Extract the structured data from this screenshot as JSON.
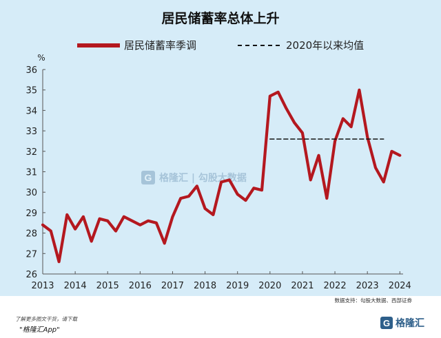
{
  "chart_data": {
    "type": "line",
    "title": "居民储蓄率总体上升",
    "ylabel": "%",
    "ylim": [
      26,
      36
    ],
    "yticks": [
      26,
      27,
      28,
      29,
      30,
      31,
      32,
      33,
      34,
      35,
      36
    ],
    "xlim": [
      2013,
      2024.1
    ],
    "xticks": [
      2013,
      2014,
      2015,
      2016,
      2017,
      2018,
      2019,
      2020,
      2021,
      2022,
      2023,
      2024
    ],
    "grid": false,
    "legend_position": "top",
    "series": [
      {
        "name": "居民储蓄率季调",
        "color": "#b4181f",
        "style": "solid",
        "x": [
          2013.0,
          2013.25,
          2013.5,
          2013.75,
          2014.0,
          2014.25,
          2014.5,
          2014.75,
          2015.0,
          2015.25,
          2015.5,
          2015.75,
          2016.0,
          2016.25,
          2016.5,
          2016.75,
          2017.0,
          2017.25,
          2017.5,
          2017.75,
          2018.0,
          2018.25,
          2018.5,
          2018.75,
          2019.0,
          2019.25,
          2019.5,
          2019.75,
          2020.0,
          2020.25,
          2020.5,
          2020.75,
          2021.0,
          2021.25,
          2021.5,
          2021.75,
          2022.0,
          2022.25,
          2022.5,
          2022.75,
          2023.0,
          2023.25,
          2023.5,
          2023.75,
          2024.0
        ],
        "y": [
          28.4,
          28.1,
          26.6,
          28.9,
          28.2,
          28.8,
          27.6,
          28.7,
          28.6,
          28.1,
          28.8,
          28.6,
          28.4,
          28.6,
          28.5,
          27.5,
          28.8,
          29.7,
          29.8,
          30.3,
          29.2,
          28.9,
          30.5,
          30.6,
          29.9,
          29.6,
          30.2,
          30.1,
          34.7,
          34.9,
          34.1,
          33.4,
          32.9,
          30.6,
          31.8,
          29.7,
          32.5,
          33.6,
          33.2,
          35.0,
          32.7,
          31.2,
          30.5,
          32.0,
          31.8
        ]
      },
      {
        "name": "2020年以来均值",
        "color": "#111111",
        "style": "dashed",
        "x": [
          2020.0,
          2023.5
        ],
        "y": [
          32.6,
          32.6
        ]
      }
    ]
  },
  "source": "数据支持：勾股大数据、西部证券",
  "watermark": "格隆汇 | 勾股大数据",
  "watermark_logo_glyph": "G",
  "footer": {
    "line1": "了解更多图文干货，请下载",
    "line2": "\"格隆汇App\"",
    "logo_glyph": "G",
    "logo_text": "格隆汇"
  }
}
